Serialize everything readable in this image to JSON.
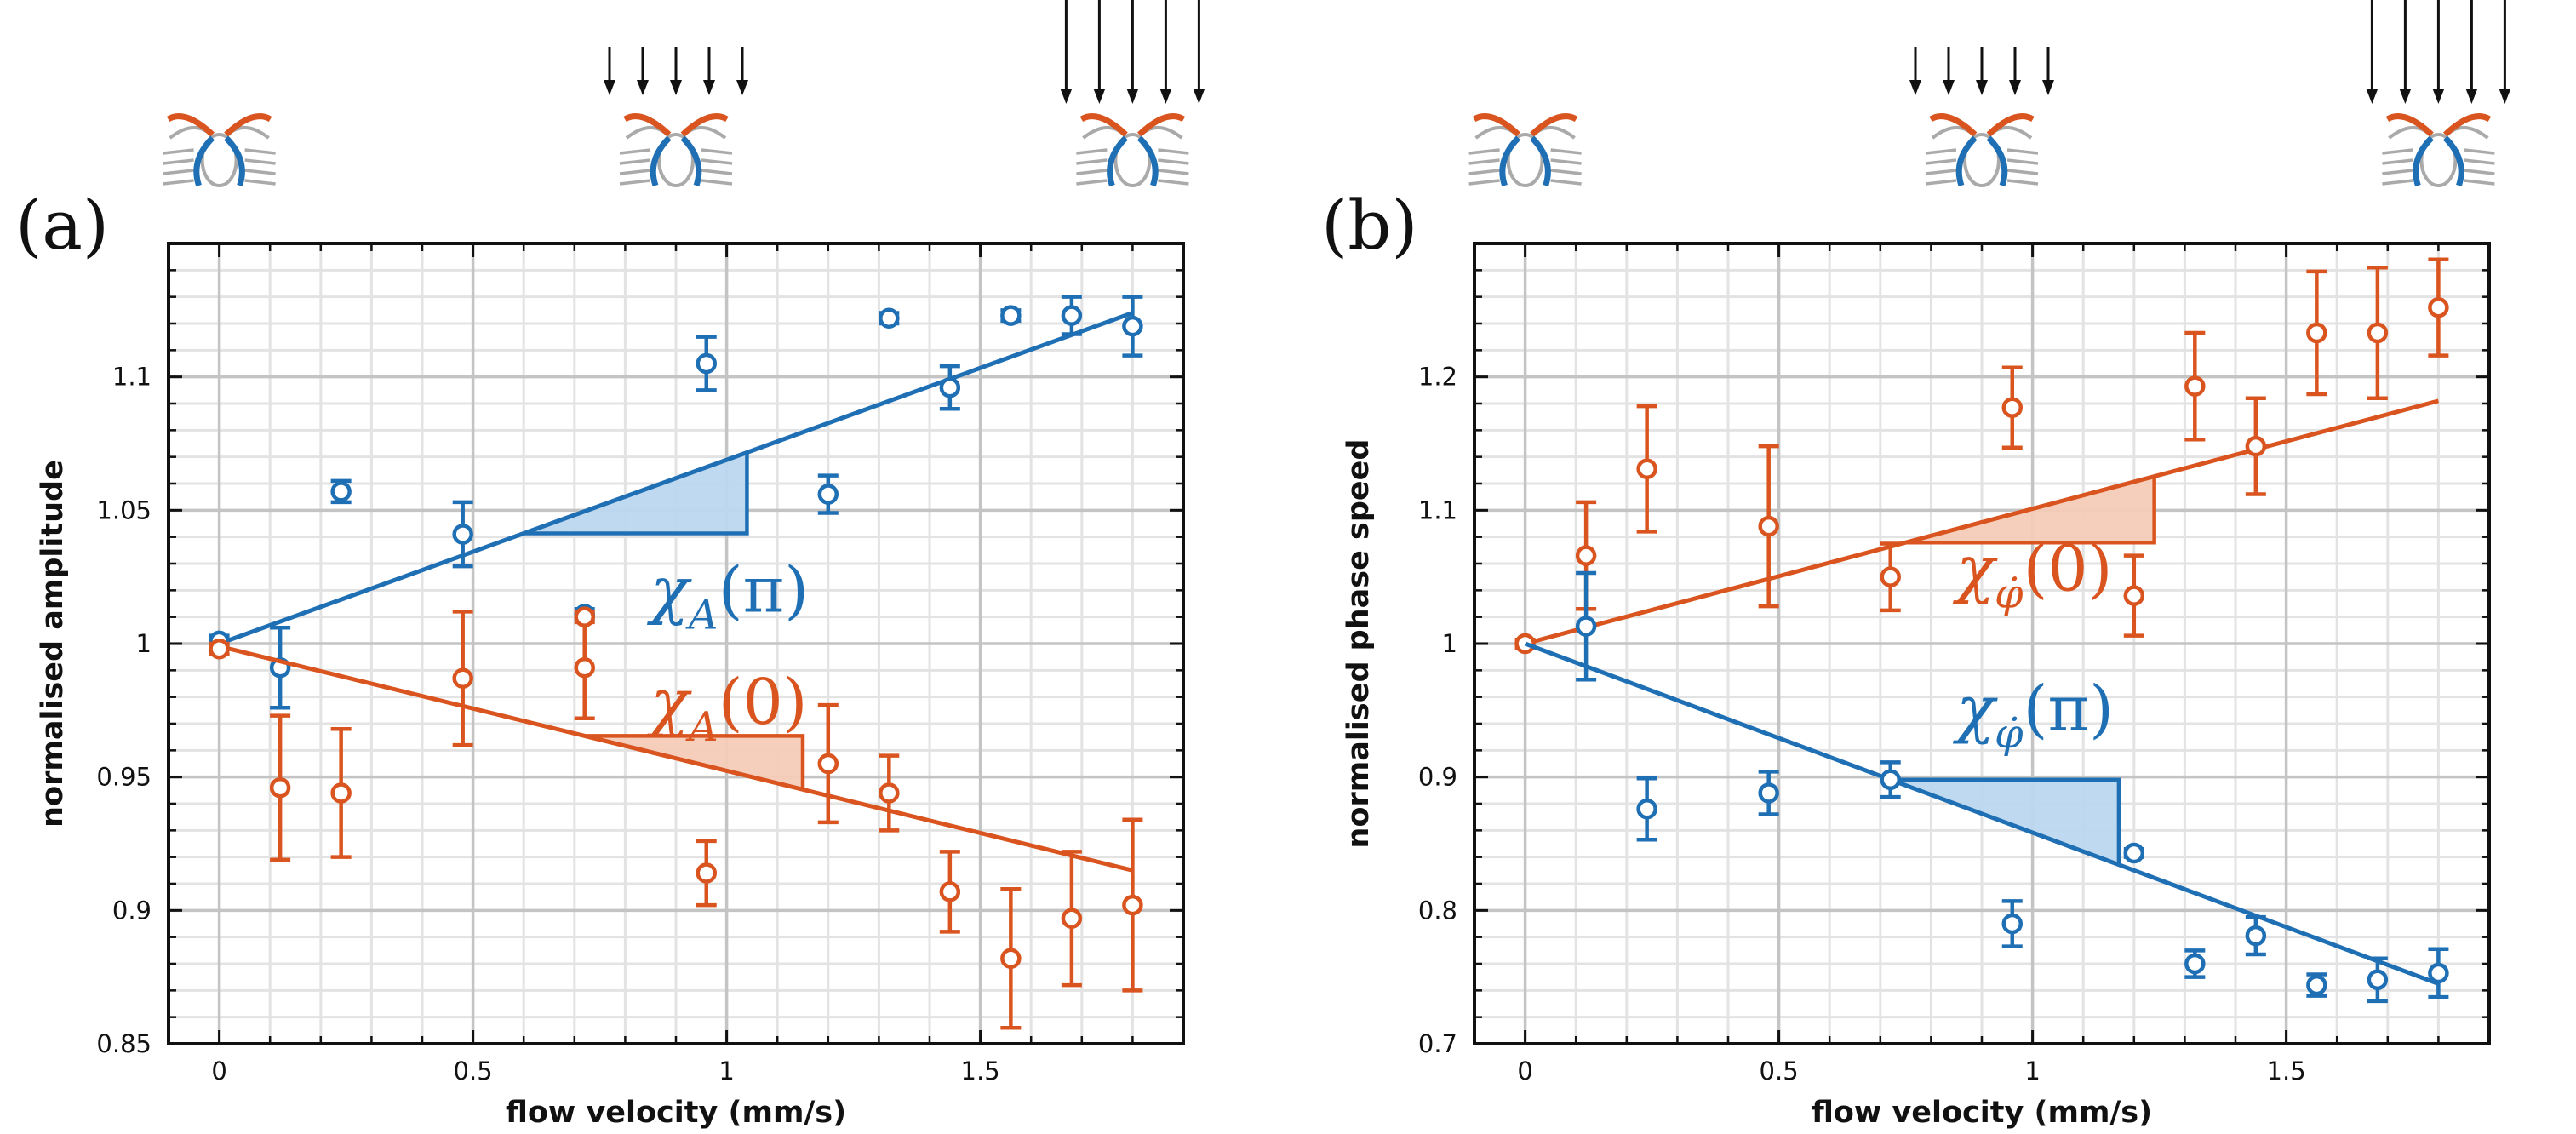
{
  "colors": {
    "blue": "#1f6fb4",
    "orange": "#d9541e",
    "blue_fill": "#bcd7ef",
    "orange_fill": "#f5cbb8"
  },
  "chart_data": [
    {
      "type": "scatter",
      "panel_label": "(a)",
      "xlabel": "flow velocity (mm/s)",
      "ylabel": "normalised amplitude",
      "xlim": [
        -0.1,
        1.9
      ],
      "ylim": [
        0.85,
        1.15
      ],
      "xticks": [
        0,
        0.5,
        1,
        1.5
      ],
      "xtick_labels": [
        "0",
        "0.5",
        "1",
        "1.5"
      ],
      "yticks": [
        0.85,
        0.9,
        0.95,
        1,
        1.05,
        1.1
      ],
      "ytick_labels": [
        "0.85",
        "0.9",
        "0.95",
        "1",
        "1.05",
        "1.1"
      ],
      "grid": true,
      "series": [
        {
          "name": "χ_A(π)",
          "color": "blue",
          "x": [
            0,
            0.12,
            0.24,
            0.48,
            0.72,
            0.96,
            1.2,
            1.32,
            1.44,
            1.56,
            1.68,
            1.8
          ],
          "y": [
            1.001,
            0.991,
            1.057,
            1.041,
            1.011,
            1.105,
            1.056,
            1.122,
            1.096,
            1.123,
            1.123,
            1.119
          ],
          "err": [
            0.002,
            0.015,
            0.004,
            0.012,
            0.002,
            0.01,
            0.007,
            0.002,
            0.008,
            0.002,
            0.007,
            0.011
          ],
          "fit": {
            "x": [
              0,
              1.8
            ],
            "y": [
              1.0,
              1.124
            ]
          },
          "slope_triangle": {
            "x0": 0.6,
            "x1": 1.04
          }
        },
        {
          "name": "χ_A(0)",
          "color": "orange",
          "x": [
            0,
            0.12,
            0.24,
            0.48,
            0.72,
            0.72,
            0.96,
            1.2,
            1.32,
            1.44,
            1.56,
            1.68,
            1.8
          ],
          "y": [
            0.998,
            0.946,
            0.944,
            0.987,
            0.991,
            1.01,
            0.914,
            0.955,
            0.944,
            0.907,
            0.882,
            0.897,
            0.902
          ],
          "err": [
            0.002,
            0.027,
            0.024,
            0.025,
            0.019,
            0.002,
            0.012,
            0.022,
            0.014,
            0.015,
            0.026,
            0.025,
            0.032
          ],
          "fit": {
            "x": [
              0,
              1.8
            ],
            "y": [
              0.999,
              0.915
            ]
          },
          "slope_triangle": {
            "x0": 0.72,
            "x1": 1.15
          }
        }
      ],
      "annotations": [
        {
          "series": 0,
          "base": "χ",
          "sub": "A",
          "arg": "(π)",
          "x": 0.85,
          "y": 1.012
        },
        {
          "series": 1,
          "base": "χ",
          "sub": "A",
          "arg": "(0)",
          "x": 0.85,
          "y": 0.97
        }
      ],
      "flow_icons": [
        {
          "x": 0,
          "arrows": 0
        },
        {
          "x": 0.9,
          "arrows": 5
        },
        {
          "x": 1.8,
          "arrows": 5
        }
      ]
    },
    {
      "type": "scatter",
      "panel_label": "(b)",
      "xlabel": "flow velocity (mm/s)",
      "ylabel": "normalised phase speed",
      "xlim": [
        -0.1,
        1.9
      ],
      "ylim": [
        0.7,
        1.3
      ],
      "xticks": [
        0,
        0.5,
        1,
        1.5
      ],
      "xtick_labels": [
        "0",
        "0.5",
        "1",
        "1.5"
      ],
      "yticks": [
        0.7,
        0.8,
        0.9,
        1,
        1.1,
        1.2
      ],
      "ytick_labels": [
        "0.7",
        "0.8",
        "0.9",
        "1",
        "1.1",
        "1.2"
      ],
      "grid": true,
      "series": [
        {
          "name": "χ_φ̇(0)",
          "color": "orange",
          "x": [
            0,
            0.12,
            0.24,
            0.48,
            0.72,
            0.96,
            1.2,
            1.32,
            1.44,
            1.56,
            1.68,
            1.8
          ],
          "y": [
            1.0,
            1.066,
            1.131,
            1.088,
            1.05,
            1.177,
            1.036,
            1.193,
            1.148,
            1.233,
            1.233,
            1.252
          ],
          "err": [
            0.003,
            0.04,
            0.047,
            0.06,
            0.025,
            0.03,
            0.03,
            0.04,
            0.036,
            0.046,
            0.049,
            0.036
          ],
          "fit": {
            "x": [
              0,
              1.8
            ],
            "y": [
              1.0,
              1.182
            ]
          },
          "slope_triangle": {
            "x0": 0.75,
            "x1": 1.24
          }
        },
        {
          "name": "χ_φ̇(π)",
          "color": "blue",
          "x": [
            0.12,
            0.24,
            0.48,
            0.72,
            0.96,
            1.2,
            1.32,
            1.44,
            1.56,
            1.68,
            1.8
          ],
          "y": [
            1.013,
            0.876,
            0.888,
            0.898,
            0.79,
            0.843,
            0.76,
            0.781,
            0.744,
            0.748,
            0.753
          ],
          "err": [
            0.04,
            0.023,
            0.016,
            0.013,
            0.017,
            0.003,
            0.01,
            0.014,
            0.008,
            0.016,
            0.018
          ],
          "fit": {
            "x": [
              0,
              1.8
            ],
            "y": [
              1.0,
              0.745
            ]
          },
          "slope_triangle": {
            "x0": 0.72,
            "x1": 1.17
          }
        }
      ],
      "annotations": [
        {
          "series": 0,
          "base": "χ",
          "sub": "φ̇",
          "arg": "(0)",
          "x": 0.85,
          "y": 1.04
        },
        {
          "series": 1,
          "base": "χ",
          "sub": "φ̇",
          "arg": "(π)",
          "x": 0.85,
          "y": 0.935
        }
      ],
      "flow_icons": [
        {
          "x": 0,
          "arrows": 0
        },
        {
          "x": 0.9,
          "arrows": 5
        },
        {
          "x": 1.8,
          "arrows": 5
        }
      ]
    }
  ]
}
